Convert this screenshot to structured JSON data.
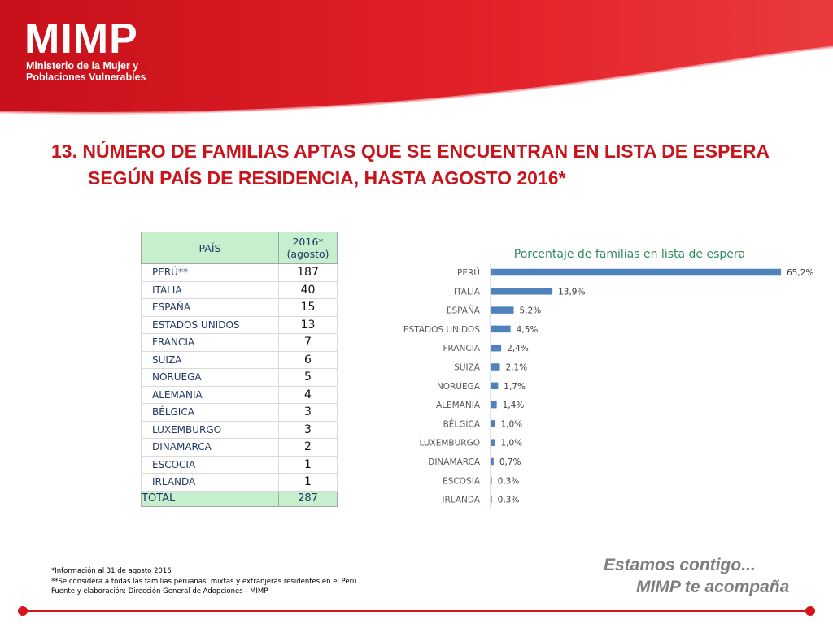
{
  "header": {
    "logo": "MIMP",
    "org_line1": "Ministerio de la Mujer y",
    "org_line2": "Poblaciones Vulnerables"
  },
  "title": {
    "line1": "13. NÚMERO DE FAMILIAS APTAS QUE SE ENCUENTRAN EN LISTA DE ESPERA",
    "line2": "SEGÚN PAÍS DE RESIDENCIA, HASTA AGOSTO 2016*"
  },
  "table": {
    "header_country": "PAÍS",
    "header_year": "2016*",
    "header_period": "(agosto)",
    "rows": [
      {
        "country": "PERÚ**",
        "value": "187"
      },
      {
        "country": "ITALIA",
        "value": "40"
      },
      {
        "country": "ESPAÑA",
        "value": "15"
      },
      {
        "country": "ESTADOS UNIDOS",
        "value": "13"
      },
      {
        "country": "FRANCIA",
        "value": "7"
      },
      {
        "country": "SUIZA",
        "value": "6"
      },
      {
        "country": "NORUEGA",
        "value": "5"
      },
      {
        "country": "ALEMANIA",
        "value": "4"
      },
      {
        "country": "BÉLGICA",
        "value": "3"
      },
      {
        "country": "LUXEMBURGO",
        "value": "3"
      },
      {
        "country": "DINAMARCA",
        "value": "2"
      },
      {
        "country": "ESCOCIA",
        "value": "1"
      },
      {
        "country": "IRLANDA",
        "value": "1"
      }
    ],
    "total_label": "TOTAL",
    "total_value": "287"
  },
  "chart_data": {
    "type": "bar",
    "orientation": "horizontal",
    "title": "Porcentaje de familias en lista de espera",
    "categories": [
      "PERÚ",
      "ITALIA",
      "ESPAÑA",
      "ESTADOS UNIDOS",
      "FRANCIA",
      "SUIZA",
      "NORUEGA",
      "ALEMANIA",
      "BÉLGICA",
      "LUXEMBURGO",
      "DINAMARCA",
      "ESCOSIA",
      "IRLANDA"
    ],
    "values": [
      65.2,
      13.9,
      5.2,
      4.5,
      2.4,
      2.1,
      1.7,
      1.4,
      1.0,
      1.0,
      0.7,
      0.3,
      0.3
    ],
    "data_labels": [
      "65,2%",
      "13,9%",
      "5,2%",
      "4,5%",
      "2,4%",
      "2,1%",
      "1,7%",
      "1,4%",
      "1,0%",
      "1,0%",
      "0,7%",
      "0,3%",
      "0,3%"
    ],
    "xlim": [
      0,
      65.2
    ],
    "grid": false,
    "bar_color": "#4f81bd"
  },
  "footnotes": {
    "note1": "*Información al 31 de agosto 2016",
    "note2": "**Se considera a todas las familias peruanas, mixtas y extranjeras residentes en el Perú.",
    "source": "Fuente y elaboración: Dirección General de Adopciones - MIMP"
  },
  "slogan": {
    "line1": "Estamos contigo...",
    "line2": "MIMP te acompaña"
  },
  "colors": {
    "brand_red": "#d7141c",
    "title_red": "#c8151d",
    "table_header_green": "#c6efce"
  }
}
